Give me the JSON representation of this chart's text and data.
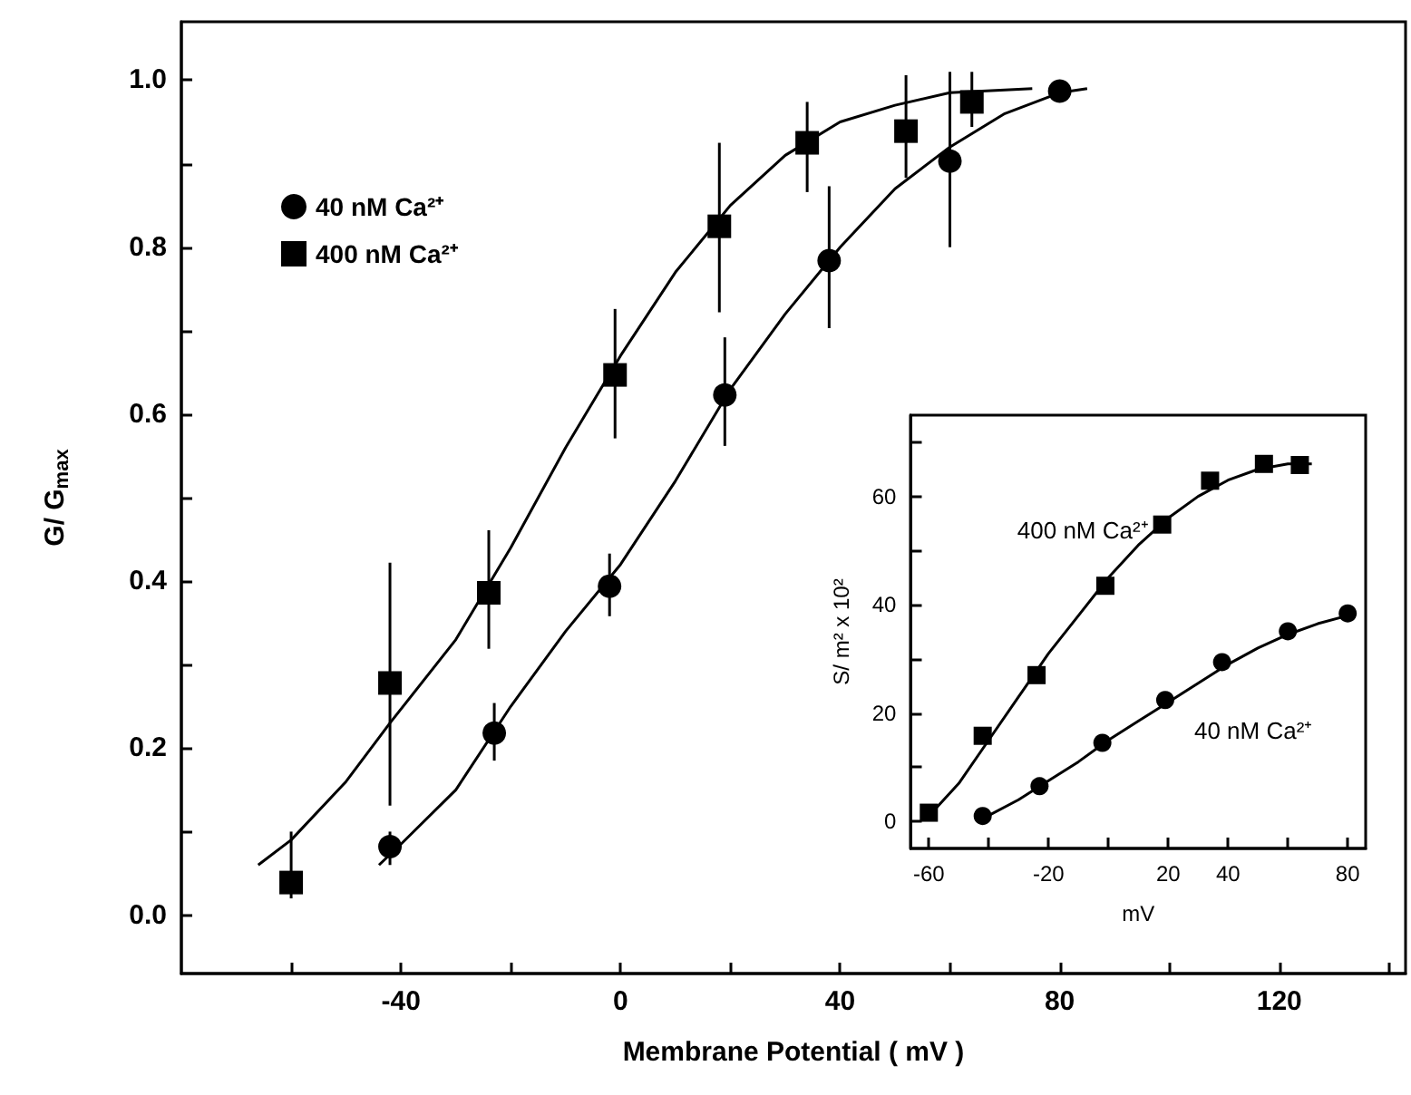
{
  "chart_data": [
    {
      "type": "scatter",
      "xlabel": "Membrane Potential ( mV )",
      "ylabel": "G/ G$_{max}$",
      "legend": "top left",
      "xlim": [
        -80,
        143
      ],
      "xticks": [
        {
          "value": -60,
          "label": null
        },
        {
          "value": -40,
          "label": "-40"
        },
        {
          "value": -20,
          "label": null
        },
        {
          "value": 0,
          "label": "0"
        },
        {
          "value": 20,
          "label": null
        },
        {
          "value": 40,
          "label": "40"
        },
        {
          "value": 60,
          "label": null
        },
        {
          "value": 80,
          "label": "80"
        },
        {
          "value": 100,
          "label": null
        },
        {
          "value": 120,
          "label": "120"
        },
        {
          "value": 140,
          "label": null
        }
      ],
      "ylim": [
        -0.07,
        1.07
      ],
      "yticks": [
        {
          "value": 0,
          "label": "0.0"
        },
        {
          "value": 0.1,
          "label": null
        },
        {
          "value": 0.2,
          "label": "0.2"
        },
        {
          "value": 0.3,
          "label": null
        },
        {
          "value": 0.4,
          "label": "0.4"
        },
        {
          "value": 0.5,
          "label": null
        },
        {
          "value": 0.6,
          "label": "0.6"
        },
        {
          "value": 0.7,
          "label": null
        },
        {
          "value": 0.8,
          "label": "0.8"
        },
        {
          "value": 0.9,
          "label": null
        },
        {
          "value": 1.0,
          "label": "1.0"
        }
      ],
      "series": [
        {
          "name": "40 nM Ca²⁺",
          "color": "#000000",
          "marker": "circle",
          "x": [
            -42,
            -23,
            -2,
            19,
            38,
            60,
            80
          ],
          "values": [
            0.082,
            0.218,
            0.394,
            0.623,
            0.784,
            0.903,
            0.987
          ],
          "errors": [
            [
              0.06,
              0.1
            ],
            [
              0.185,
              0.254
            ],
            [
              0.358,
              0.433
            ],
            [
              0.562,
              0.692
            ],
            [
              0.703,
              0.873
            ],
            [
              0.8,
              1.01
            ],
            null
          ]
        },
        {
          "name": "400 nM Ca²⁺",
          "color": "#000000",
          "marker": "square",
          "x": [
            -60,
            -42,
            -24,
            -1,
            18,
            34,
            52,
            64
          ],
          "values": [
            0.039,
            0.278,
            0.386,
            0.647,
            0.825,
            0.925,
            0.939,
            0.974
          ],
          "errors": [
            [
              0.02,
              0.1
            ],
            [
              0.131,
              0.422
            ],
            [
              0.319,
              0.461
            ],
            [
              0.571,
              0.726
            ],
            [
              0.722,
              0.925
            ],
            [
              0.866,
              0.974
            ],
            [
              0.883,
              1.006
            ],
            [
              0.944,
              1.01
            ]
          ]
        },
        {
          "type": "line",
          "color": "#000000",
          "x": [
            -44,
            -40,
            -30,
            -20,
            -10,
            0,
            10,
            20,
            30,
            40,
            50,
            60,
            70,
            80,
            85
          ],
          "values": [
            0.06,
            0.085,
            0.15,
            0.25,
            0.34,
            0.42,
            0.52,
            0.63,
            0.72,
            0.8,
            0.87,
            0.92,
            0.96,
            0.985,
            0.99
          ]
        },
        {
          "type": "line",
          "color": "#000000",
          "x": [
            -66,
            -60,
            -50,
            -42,
            -30,
            -20,
            -10,
            0,
            10,
            20,
            30,
            40,
            50,
            60,
            75
          ],
          "values": [
            0.06,
            0.09,
            0.16,
            0.23,
            0.33,
            0.44,
            0.56,
            0.67,
            0.77,
            0.85,
            0.91,
            0.95,
            0.97,
            0.985,
            0.99
          ]
        }
      ]
    },
    {
      "type": "scatter",
      "xlabel": "mV",
      "ylabel": "S/ m² x 10²",
      "xlim": [
        -66,
        86
      ],
      "xticks": [
        {
          "value": -60,
          "label": "-60"
        },
        {
          "value": -40,
          "label": null
        },
        {
          "value": -20,
          "label": "-20"
        },
        {
          "value": 0,
          "label": null
        },
        {
          "value": 20,
          "label": "20"
        },
        {
          "value": 40,
          "label": "40"
        },
        {
          "value": 60,
          "label": null
        },
        {
          "value": 80,
          "label": "80"
        }
      ],
      "ylim": [
        -5,
        75
      ],
      "yticks": [
        {
          "value": 0,
          "label": "0"
        },
        {
          "value": 10,
          "label": null
        },
        {
          "value": 20,
          "label": "20"
        },
        {
          "value": 30,
          "label": null
        },
        {
          "value": 40,
          "label": "40"
        },
        {
          "value": 50,
          "label": null
        },
        {
          "value": 60,
          "label": "60"
        },
        {
          "value": 70,
          "label": null
        }
      ],
      "series": [
        {
          "name": "400 nM Ca²⁺",
          "color": "#000000",
          "marker": "square",
          "x": [
            -60,
            -42,
            -24,
            -1,
            18,
            34,
            52,
            64
          ],
          "values": [
            1.6,
            15.8,
            27,
            43.5,
            54.8,
            62.9,
            66,
            65.8
          ]
        },
        {
          "name": "40 nM Ca²⁺",
          "color": "#000000",
          "marker": "circle",
          "x": [
            -42,
            -23,
            -2,
            19,
            38,
            60,
            80
          ],
          "values": [
            1,
            6.5,
            14.5,
            22.4,
            29.4,
            35.1,
            38.4
          ]
        },
        {
          "type": "line",
          "color": "#000000",
          "x": [
            -60,
            -50,
            -40,
            -30,
            -20,
            -10,
            0,
            10,
            20,
            30,
            40,
            50,
            60,
            68
          ],
          "values": [
            1,
            7,
            15,
            23,
            31,
            38,
            45,
            51,
            56,
            60,
            63,
            65,
            66,
            66
          ]
        },
        {
          "type": "line",
          "color": "#000000",
          "x": [
            -42,
            -30,
            -20,
            -10,
            0,
            10,
            20,
            30,
            40,
            50,
            60,
            70,
            80
          ],
          "values": [
            0.5,
            4,
            7.5,
            11,
            15,
            18.5,
            22,
            25.5,
            29,
            32,
            34.5,
            36.5,
            38
          ]
        }
      ]
    }
  ]
}
